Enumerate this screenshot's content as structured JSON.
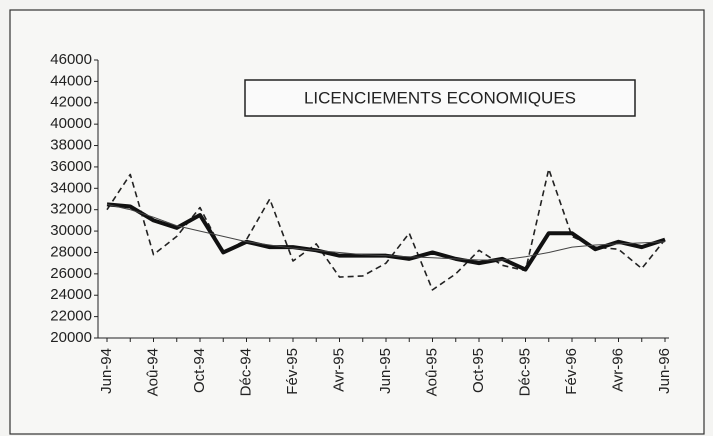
{
  "chart_data": {
    "type": "line",
    "title": "LICENCIEMENTS ECONOMIQUES",
    "categories": [
      "Jun-94",
      null,
      "Aoû-94",
      null,
      "Oct-94",
      null,
      "Déc-94",
      null,
      "Fév-95",
      null,
      "Avr-95",
      null,
      "Jun-95",
      null,
      "Aoû-95",
      null,
      "Oct-95",
      null,
      "Déc-95",
      null,
      "Fév-96",
      null,
      "Avr-96",
      null,
      "Jun-96"
    ],
    "series": [
      {
        "color": "#222222",
        "dash": "6,4",
        "linewidth": 1.6,
        "values": [
          32000,
          35300,
          27800,
          29500,
          32200,
          28000,
          29200,
          33000,
          27200,
          28800,
          25700,
          25800,
          27000,
          29800,
          24500,
          26000,
          28200,
          26800,
          26300,
          35800,
          29500,
          28500,
          28300,
          26500,
          29200
        ]
      },
      {
        "color": "#111111",
        "dash": "none",
        "linewidth": 4,
        "values": [
          32500,
          32300,
          31000,
          30300,
          31500,
          28000,
          29000,
          28500,
          28500,
          28200,
          27700,
          27700,
          27700,
          27400,
          28000,
          27400,
          27000,
          27400,
          26400,
          29800,
          29800,
          28300,
          29000,
          28500,
          29200
        ]
      },
      {
        "color": "#444444",
        "dash": "none",
        "linewidth": 1,
        "values": [
          32500,
          32000,
          31300,
          30500,
          30000,
          29500,
          29000,
          28700,
          28400,
          28200,
          28000,
          27800,
          27700,
          27600,
          27500,
          27400,
          27300,
          27300,
          27600,
          28000,
          28500,
          28700,
          28800,
          28900,
          29000
        ]
      }
    ],
    "ylim": [
      20000,
      46000
    ],
    "yticks": [
      20000,
      22000,
      24000,
      26000,
      28000,
      30000,
      32000,
      34000,
      36000,
      38000,
      40000,
      42000,
      44000,
      46000
    ]
  }
}
